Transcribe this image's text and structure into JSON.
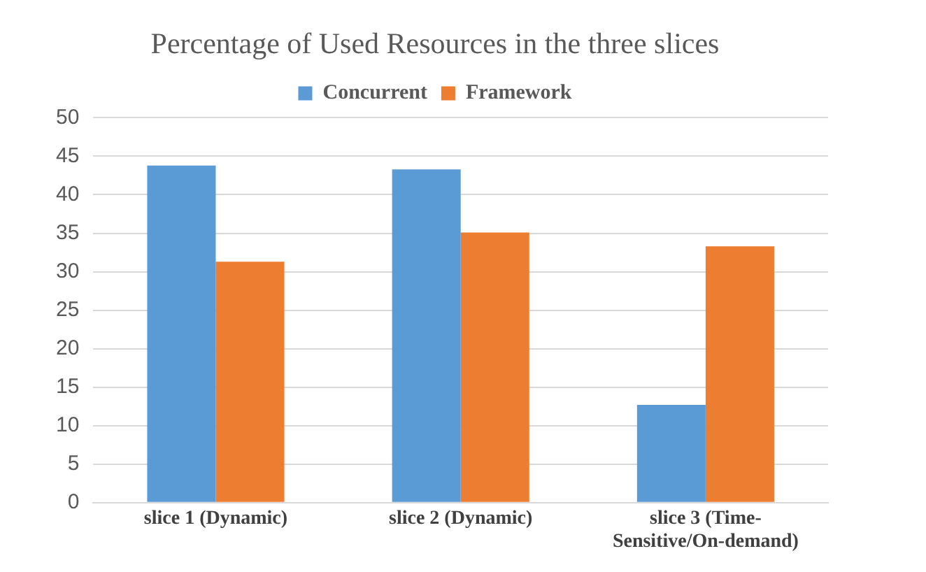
{
  "chart_data": {
    "type": "bar",
    "title": "Percentage of Used Resources in the three slices",
    "categories": [
      "slice 1 (Dynamic)",
      "slice 2 (Dynamic)",
      "slice 3 (Time-Sensitive/On-demand)"
    ],
    "series": [
      {
        "name": "Concurrent",
        "color": "#5b9bd5",
        "values": [
          43.8,
          43.3,
          12.7
        ]
      },
      {
        "name": "Framework",
        "color": "#ed7d31",
        "values": [
          31.3,
          35.1,
          33.3
        ]
      }
    ],
    "ylim": [
      0,
      50
    ],
    "yticks": [
      0,
      5,
      10,
      15,
      20,
      25,
      30,
      35,
      40,
      45,
      50
    ],
    "grid": "y",
    "legend": "top"
  }
}
